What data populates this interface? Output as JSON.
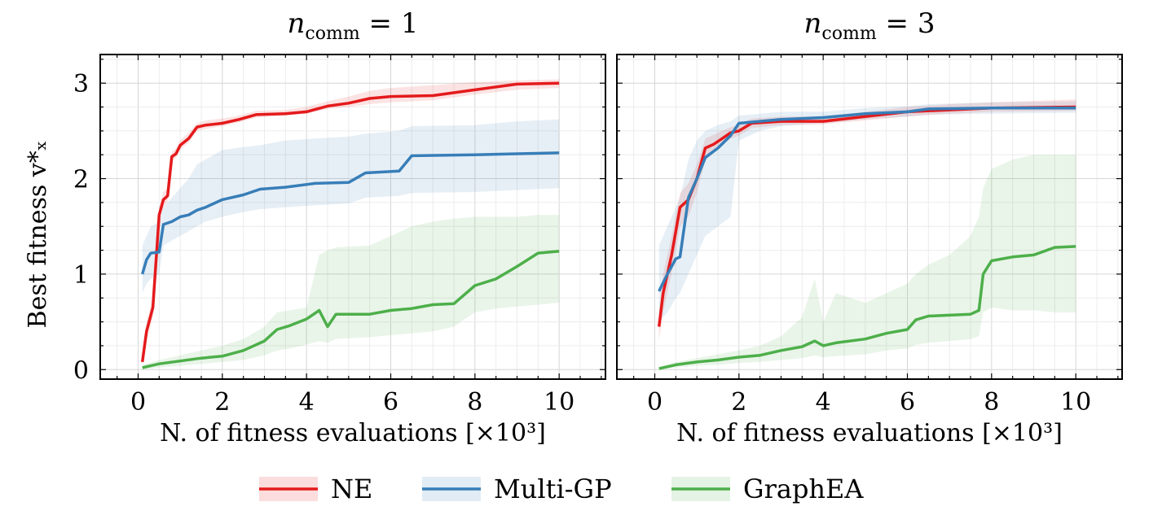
{
  "ylabel": "Best fitness v*ₓ",
  "legend": [
    {
      "name": "NE",
      "color": "#e41a1c"
    },
    {
      "name": "Multi-GP",
      "color": "#377eb8"
    },
    {
      "name": "GraphEA",
      "color": "#4daf4a"
    }
  ],
  "chart_data": [
    {
      "type": "line",
      "title": "n_comm = 1",
      "title_main": "n",
      "title_sub": "comm",
      "title_rest": " = 1",
      "xlabel": "N. of fitness evaluations [×10³]",
      "xlim": [
        -0.9,
        11.1
      ],
      "ylim": [
        -0.1,
        3.3
      ],
      "xticks": [
        0,
        2,
        4,
        6,
        8,
        10
      ],
      "yticks": [
        0,
        1,
        2,
        3
      ],
      "grid": true,
      "series": [
        {
          "name": "NE",
          "color": "#e41a1c",
          "x": [
            0.1,
            0.2,
            0.35,
            0.5,
            0.6,
            0.7,
            0.8,
            0.9,
            1.0,
            1.2,
            1.4,
            1.6,
            2.0,
            2.4,
            2.8,
            3.5,
            4.0,
            4.5,
            5.0,
            5.5,
            6.0,
            7.0,
            8.0,
            9.0,
            10.0
          ],
          "y": [
            0.08,
            0.4,
            0.65,
            1.62,
            1.78,
            1.82,
            2.23,
            2.26,
            2.35,
            2.42,
            2.54,
            2.56,
            2.58,
            2.62,
            2.67,
            2.68,
            2.7,
            2.76,
            2.79,
            2.84,
            2.86,
            2.87,
            2.93,
            2.99,
            3.0
          ],
          "lower": [
            0.05,
            0.3,
            0.55,
            1.55,
            1.7,
            1.76,
            2.18,
            2.22,
            2.3,
            2.38,
            2.5,
            2.52,
            2.55,
            2.59,
            2.64,
            2.66,
            2.68,
            2.73,
            2.75,
            2.78,
            2.8,
            2.82,
            2.88,
            2.93,
            2.95
          ],
          "upper": [
            0.12,
            0.5,
            0.75,
            1.7,
            1.86,
            1.9,
            2.28,
            2.32,
            2.4,
            2.48,
            2.58,
            2.61,
            2.63,
            2.66,
            2.71,
            2.72,
            2.75,
            2.81,
            2.86,
            2.92,
            2.95,
            2.98,
            3.01,
            3.03,
            3.04
          ]
        },
        {
          "name": "Multi-GP",
          "color": "#377eb8",
          "x": [
            0.1,
            0.2,
            0.3,
            0.5,
            0.6,
            0.8,
            1.0,
            1.2,
            1.4,
            1.6,
            2.0,
            2.5,
            2.9,
            3.5,
            4.2,
            5.0,
            5.4,
            6.2,
            6.5,
            8.0,
            9.0,
            10.0
          ],
          "y": [
            1.0,
            1.15,
            1.22,
            1.23,
            1.52,
            1.55,
            1.6,
            1.62,
            1.67,
            1.7,
            1.78,
            1.83,
            1.89,
            1.91,
            1.95,
            1.96,
            2.06,
            2.08,
            2.24,
            2.25,
            2.26,
            2.27
          ],
          "lower": [
            0.8,
            0.9,
            0.95,
            1.0,
            1.3,
            1.35,
            1.4,
            1.45,
            1.5,
            1.55,
            1.6,
            1.65,
            1.68,
            1.7,
            1.72,
            1.74,
            1.8,
            1.82,
            1.85,
            1.86,
            1.88,
            1.9
          ],
          "upper": [
            1.3,
            1.4,
            1.5,
            1.55,
            1.7,
            1.8,
            1.9,
            2.0,
            2.15,
            2.2,
            2.3,
            2.33,
            2.35,
            2.4,
            2.42,
            2.44,
            2.47,
            2.5,
            2.55,
            2.56,
            2.6,
            2.62
          ]
        },
        {
          "name": "GraphEA",
          "color": "#4daf4a",
          "x": [
            0.1,
            0.5,
            1.0,
            1.5,
            2.0,
            2.5,
            3.0,
            3.3,
            3.6,
            4.0,
            4.3,
            4.5,
            4.7,
            5.5,
            6.0,
            6.5,
            7.0,
            7.5,
            8.0,
            8.5,
            9.0,
            9.5,
            10.0
          ],
          "y": [
            0.02,
            0.06,
            0.09,
            0.12,
            0.14,
            0.2,
            0.3,
            0.42,
            0.46,
            0.53,
            0.62,
            0.45,
            0.58,
            0.58,
            0.62,
            0.64,
            0.68,
            0.69,
            0.88,
            0.95,
            1.08,
            1.22,
            1.24
          ],
          "lower": [
            0.0,
            0.02,
            0.04,
            0.06,
            0.08,
            0.1,
            0.15,
            0.2,
            0.22,
            0.26,
            0.3,
            0.28,
            0.32,
            0.34,
            0.36,
            0.38,
            0.4,
            0.45,
            0.6,
            0.64,
            0.66,
            0.68,
            0.7
          ],
          "upper": [
            0.05,
            0.1,
            0.15,
            0.2,
            0.25,
            0.32,
            0.45,
            0.6,
            0.62,
            0.65,
            1.2,
            1.25,
            1.28,
            1.3,
            1.4,
            1.5,
            1.55,
            1.58,
            1.6,
            1.6,
            1.6,
            1.62,
            1.62
          ]
        }
      ]
    },
    {
      "type": "line",
      "title": "n_comm = 3",
      "title_main": "n",
      "title_sub": "comm",
      "title_rest": " = 3",
      "xlabel": "N. of fitness evaluations [×10³]",
      "xlim": [
        -0.9,
        11.1
      ],
      "ylim": [
        -0.1,
        3.3
      ],
      "xticks": [
        0,
        2,
        4,
        6,
        8,
        10
      ],
      "yticks": [
        0,
        1,
        2,
        3
      ],
      "grid": true,
      "series": [
        {
          "name": "NE",
          "color": "#e41a1c",
          "x": [
            0.1,
            0.2,
            0.4,
            0.6,
            0.8,
            1.0,
            1.2,
            1.4,
            1.6,
            1.8,
            2.0,
            2.3,
            3.0,
            4.0,
            5.0,
            6.0,
            7.0,
            8.0,
            10.0
          ],
          "y": [
            0.45,
            0.8,
            1.2,
            1.7,
            1.78,
            2.0,
            2.32,
            2.36,
            2.42,
            2.48,
            2.5,
            2.58,
            2.6,
            2.6,
            2.65,
            2.7,
            2.72,
            2.74,
            2.75
          ],
          "lower": [
            0.3,
            0.6,
            1.0,
            1.5,
            1.6,
            1.85,
            2.2,
            2.28,
            2.35,
            2.42,
            2.45,
            2.53,
            2.56,
            2.57,
            2.61,
            2.65,
            2.68,
            2.7,
            2.71
          ],
          "upper": [
            0.6,
            1.0,
            1.4,
            1.85,
            1.95,
            2.15,
            2.42,
            2.46,
            2.5,
            2.54,
            2.56,
            2.63,
            2.65,
            2.65,
            2.7,
            2.75,
            2.78,
            2.8,
            2.83
          ]
        },
        {
          "name": "Multi-GP",
          "color": "#377eb8",
          "x": [
            0.1,
            0.3,
            0.5,
            0.6,
            0.8,
            1.0,
            1.2,
            1.5,
            1.8,
            2.0,
            2.5,
            3.0,
            4.0,
            5.0,
            6.0,
            6.5,
            8.0,
            10.0
          ],
          "y": [
            0.82,
            1.0,
            1.16,
            1.18,
            1.8,
            2.0,
            2.22,
            2.32,
            2.45,
            2.58,
            2.6,
            2.62,
            2.64,
            2.68,
            2.7,
            2.73,
            2.74,
            2.74
          ],
          "lower": [
            0.5,
            0.6,
            0.75,
            0.8,
            1.0,
            1.2,
            1.4,
            1.5,
            1.6,
            2.4,
            2.5,
            2.55,
            2.58,
            2.62,
            2.65,
            2.67,
            2.68,
            2.69
          ],
          "upper": [
            1.3,
            1.5,
            1.7,
            1.8,
            2.2,
            2.4,
            2.5,
            2.56,
            2.6,
            2.66,
            2.68,
            2.7,
            2.7,
            2.74,
            2.76,
            2.78,
            2.8,
            2.81
          ]
        },
        {
          "name": "GraphEA",
          "color": "#4daf4a",
          "x": [
            0.1,
            0.5,
            1.0,
            1.5,
            2.0,
            2.5,
            3.0,
            3.5,
            3.8,
            4.0,
            4.3,
            5.0,
            5.5,
            6.0,
            6.2,
            6.5,
            7.0,
            7.5,
            7.7,
            7.8,
            8.0,
            8.5,
            9.0,
            9.5,
            10.0
          ],
          "y": [
            0.01,
            0.05,
            0.08,
            0.1,
            0.13,
            0.15,
            0.2,
            0.24,
            0.3,
            0.25,
            0.28,
            0.32,
            0.38,
            0.42,
            0.52,
            0.56,
            0.57,
            0.58,
            0.62,
            1.0,
            1.14,
            1.18,
            1.2,
            1.28,
            1.29
          ],
          "lower": [
            0.0,
            0.02,
            0.04,
            0.05,
            0.07,
            0.08,
            0.1,
            0.12,
            0.15,
            0.13,
            0.14,
            0.16,
            0.2,
            0.22,
            0.26,
            0.28,
            0.3,
            0.32,
            0.35,
            0.6,
            0.65,
            0.62,
            0.62,
            0.6,
            0.6
          ],
          "upper": [
            0.03,
            0.08,
            0.12,
            0.16,
            0.2,
            0.25,
            0.35,
            0.55,
            0.95,
            0.5,
            0.8,
            0.7,
            0.8,
            0.9,
            1.0,
            1.1,
            1.2,
            1.4,
            1.6,
            1.9,
            2.1,
            2.2,
            2.25,
            2.25,
            2.25
          ]
        }
      ]
    }
  ]
}
